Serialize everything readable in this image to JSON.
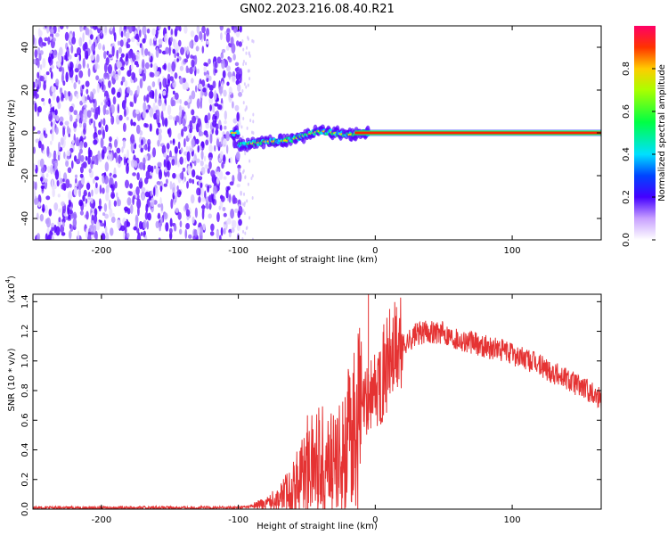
{
  "title": "GN02.2023.216.08.40.R21",
  "charts": [
    {
      "type": "heatmap",
      "xlabel": "Height of straight line (km)",
      "ylabel": "Frequency (Hz)",
      "xlim": [
        -250,
        165
      ],
      "ylim": [
        -50,
        50
      ],
      "xticks": [
        -200,
        -100,
        0,
        100
      ],
      "yticks": [
        -40,
        -20,
        0,
        20,
        40
      ],
      "noise_region_x": [
        -250,
        -98
      ],
      "signal_ridge": [
        {
          "x": -100,
          "y": -6
        },
        {
          "x": -90,
          "y": -5
        },
        {
          "x": -80,
          "y": -4
        },
        {
          "x": -70,
          "y": -4
        },
        {
          "x": -60,
          "y": -3
        },
        {
          "x": -50,
          "y": -1
        },
        {
          "x": -40,
          "y": 1
        },
        {
          "x": -30,
          "y": 0
        },
        {
          "x": -20,
          "y": -1
        },
        {
          "x": -10,
          "y": 0
        },
        {
          "x": 0,
          "y": 0
        },
        {
          "x": 165,
          "y": 0
        }
      ],
      "colorbar": {
        "label": "Normalized spectral amplitude",
        "ticks": [
          "0.0",
          "0.2",
          "0.4",
          "0.6",
          "0.8"
        ],
        "range": [
          0,
          1
        ]
      }
    },
    {
      "type": "line",
      "xlabel": "Height of straight line (km)",
      "ylabel": "SNR (10 * v/v)",
      "scale_label": "(x10",
      "scale_exp": "4",
      "scale_close": ")",
      "xlim": [
        -250,
        165
      ],
      "ylim": [
        0,
        1.45
      ],
      "xticks": [
        -200,
        -100,
        0,
        100
      ],
      "yticks": [
        "0.0",
        "0.2",
        "0.4",
        "0.6",
        "0.8",
        "1.0",
        "1.2",
        "1.4"
      ],
      "color": "#e53333",
      "series": [
        {
          "x": -250,
          "y": 0.01
        },
        {
          "x": -200,
          "y": 0.01
        },
        {
          "x": -150,
          "y": 0.01
        },
        {
          "x": -100,
          "y": 0.01
        },
        {
          "x": -90,
          "y": 0.02
        },
        {
          "x": -80,
          "y": 0.04
        },
        {
          "x": -70,
          "y": 0.08
        },
        {
          "x": -60,
          "y": 0.15
        },
        {
          "x": -50,
          "y": 0.3
        },
        {
          "x": -40,
          "y": 0.35
        },
        {
          "x": -30,
          "y": 0.3
        },
        {
          "x": -20,
          "y": 0.45
        },
        {
          "x": -10,
          "y": 0.65
        },
        {
          "x": -5,
          "y": 0.75
        },
        {
          "x": 0,
          "y": 0.8
        },
        {
          "x": 10,
          "y": 1.0
        },
        {
          "x": 20,
          "y": 1.1
        },
        {
          "x": 30,
          "y": 1.18
        },
        {
          "x": 40,
          "y": 1.2
        },
        {
          "x": 50,
          "y": 1.19
        },
        {
          "x": 60,
          "y": 1.15
        },
        {
          "x": 80,
          "y": 1.1
        },
        {
          "x": 100,
          "y": 1.05
        },
        {
          "x": 120,
          "y": 0.97
        },
        {
          "x": 140,
          "y": 0.88
        },
        {
          "x": 165,
          "y": 0.75
        }
      ],
      "spike": {
        "x": -5,
        "y": 1.45
      }
    }
  ]
}
